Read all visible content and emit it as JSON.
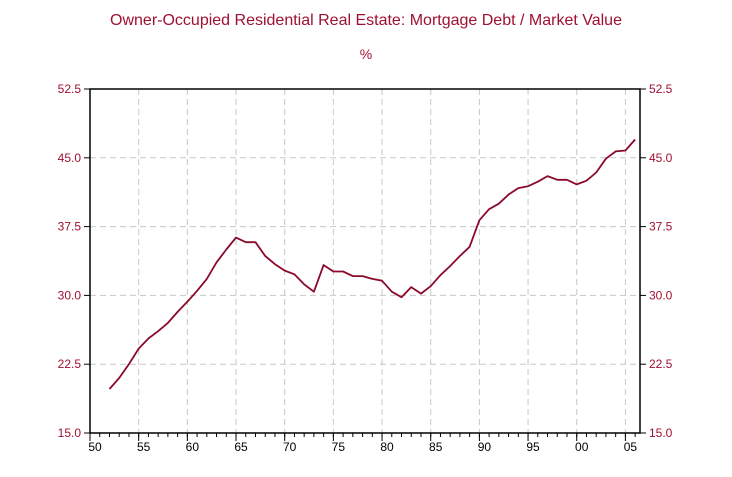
{
  "colors": {
    "text": "#a01030",
    "line": "#8b0a2a",
    "grid": "#c8c8c8",
    "axis": "#000000"
  },
  "chart_data": {
    "type": "line",
    "title": "Owner-Occupied Residential Real Estate: Mortgage Debt / Market Value",
    "subtitle": "%",
    "xlabel": "",
    "ylabel": "",
    "xlim": [
      1950,
      2006.5
    ],
    "ylim": [
      15.0,
      52.5
    ],
    "x_ticks": [
      1950,
      1955,
      1960,
      1965,
      1970,
      1975,
      1980,
      1985,
      1990,
      1995,
      2000,
      2005
    ],
    "x_tick_labels": [
      "50",
      "55",
      "60",
      "65",
      "70",
      "75",
      "80",
      "85",
      "90",
      "95",
      "00",
      "05"
    ],
    "y_ticks": [
      15.0,
      22.5,
      30.0,
      37.5,
      45.0,
      52.5
    ],
    "y_tick_labels": [
      "15.0",
      "22.5",
      "30.0",
      "37.5",
      "45.0",
      "52.5"
    ],
    "grid": true,
    "series": [
      {
        "x": [
          1952,
          1953,
          1954,
          1955,
          1956,
          1957,
          1958,
          1959,
          1960,
          1961,
          1962,
          1963,
          1964,
          1965,
          1966,
          1967,
          1968,
          1969,
          1970,
          1971,
          1972,
          1973,
          1974,
          1975,
          1976,
          1977,
          1978,
          1979,
          1980,
          1981,
          1982,
          1983,
          1984,
          1985,
          1986,
          1987,
          1988,
          1989,
          1990,
          1991,
          1992,
          1993,
          1994,
          1995,
          1996,
          1997,
          1998,
          1999,
          2000,
          2001,
          2002,
          2003,
          2004,
          2005,
          2006
        ],
        "values": [
          19.8,
          21.0,
          22.5,
          24.2,
          25.3,
          26.1,
          27.0,
          28.2,
          29.3,
          30.5,
          31.8,
          33.6,
          35.0,
          36.3,
          35.8,
          35.8,
          34.3,
          33.4,
          32.7,
          32.3,
          31.2,
          30.4,
          33.3,
          32.6,
          32.6,
          32.1,
          32.1,
          31.8,
          31.6,
          30.4,
          29.8,
          30.9,
          30.2,
          31.0,
          32.2,
          33.2,
          34.3,
          35.3,
          38.2,
          39.4,
          40.0,
          41.0,
          41.7,
          41.9,
          42.4,
          43.0,
          42.6,
          42.6,
          42.1,
          42.5,
          43.4,
          44.9,
          45.7,
          45.8,
          47.0
        ]
      }
    ]
  }
}
